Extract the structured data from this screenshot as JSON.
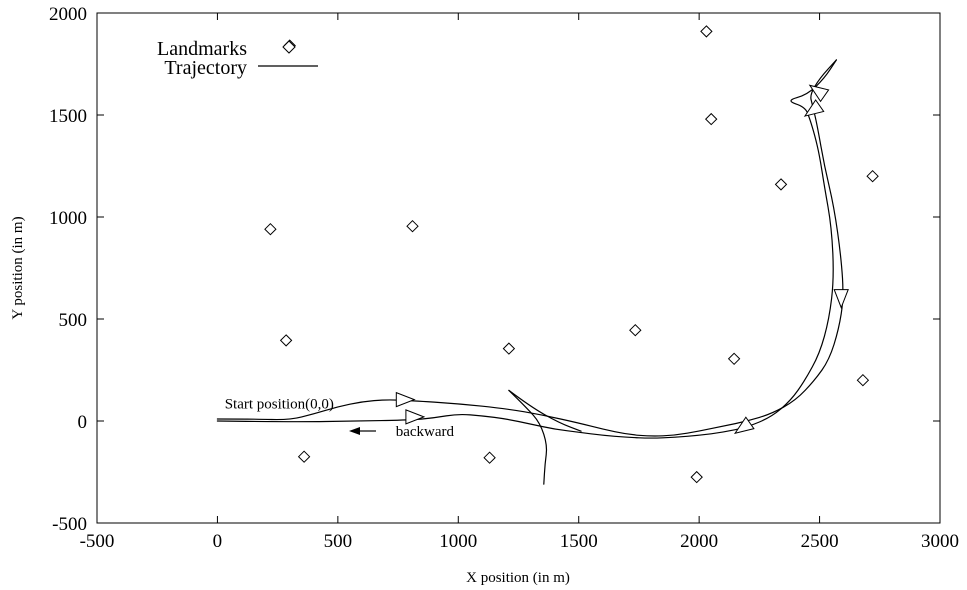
{
  "chart_data": {
    "type": "scatter",
    "title": "",
    "xlabel": "X position (in m)",
    "ylabel": "Y position (in m)",
    "xlim": [
      -500,
      3000
    ],
    "ylim": [
      -500,
      2000
    ],
    "xticks": [
      -500,
      0,
      500,
      1000,
      1500,
      2000,
      2500,
      3000
    ],
    "yticks": [
      -500,
      0,
      500,
      1000,
      1500,
      2000
    ],
    "grid": false,
    "legend": {
      "placement": "top-left",
      "entries": [
        {
          "label": "Landmarks",
          "marker": "diamond"
        },
        {
          "label": "Trajectory",
          "marker": "line"
        }
      ]
    },
    "landmarks": [
      {
        "x": 300,
        "y": 1840
      },
      {
        "x": 220,
        "y": 940
      },
      {
        "x": 810,
        "y": 955
      },
      {
        "x": 285,
        "y": 395
      },
      {
        "x": 360,
        "y": -175
      },
      {
        "x": 1210,
        "y": 355
      },
      {
        "x": 1130,
        "y": -180
      },
      {
        "x": 1735,
        "y": 445
      },
      {
        "x": 1990,
        "y": -275
      },
      {
        "x": 2030,
        "y": 1910
      },
      {
        "x": 2050,
        "y": 1480
      },
      {
        "x": 2145,
        "y": 305
      },
      {
        "x": 2340,
        "y": 1160
      },
      {
        "x": 2720,
        "y": 1200
      },
      {
        "x": 2680,
        "y": 200
      }
    ],
    "trajectories": [
      {
        "points": [
          [
            0,
            10
          ],
          [
            150,
            10
          ],
          [
            300,
            5
          ],
          [
            400,
            35
          ],
          [
            500,
            70
          ],
          [
            600,
            95
          ],
          [
            700,
            105
          ],
          [
            800,
            100
          ],
          [
            1000,
            85
          ],
          [
            1200,
            60
          ],
          [
            1350,
            30
          ],
          [
            1500,
            -10
          ],
          [
            1600,
            -40
          ],
          [
            1700,
            -65
          ],
          [
            1800,
            -75
          ],
          [
            1900,
            -70
          ],
          [
            2000,
            -50
          ],
          [
            2100,
            -25
          ],
          [
            2200,
            0
          ],
          [
            2300,
            35
          ],
          [
            2400,
            100
          ],
          [
            2480,
            200
          ],
          [
            2540,
            300
          ],
          [
            2580,
            450
          ],
          [
            2600,
            600
          ],
          [
            2590,
            800
          ],
          [
            2560,
            1050
          ],
          [
            2520,
            1250
          ],
          [
            2490,
            1450
          ],
          [
            2470,
            1550
          ],
          [
            2460,
            1600
          ],
          [
            2500,
            1680
          ],
          [
            2570,
            1770
          ]
        ]
      },
      {
        "points": [
          [
            0,
            0
          ],
          [
            300,
            -5
          ],
          [
            600,
            0
          ],
          [
            800,
            5
          ],
          [
            900,
            15
          ],
          [
            1000,
            35
          ],
          [
            1100,
            25
          ],
          [
            1200,
            10
          ],
          [
            1300,
            -15
          ],
          [
            1400,
            -40
          ],
          [
            1500,
            -55
          ],
          [
            1600,
            -70
          ],
          [
            1700,
            -80
          ],
          [
            1800,
            -85
          ],
          [
            1900,
            -80
          ],
          [
            2000,
            -70
          ],
          [
            2100,
            -55
          ],
          [
            2200,
            -30
          ],
          [
            2300,
            20
          ],
          [
            2380,
            100
          ],
          [
            2440,
            200
          ],
          [
            2500,
            330
          ],
          [
            2540,
            500
          ],
          [
            2560,
            700
          ],
          [
            2550,
            950
          ],
          [
            2520,
            1150
          ],
          [
            2500,
            1300
          ],
          [
            2480,
            1400
          ],
          [
            2460,
            1480
          ],
          [
            2440,
            1540
          ],
          [
            2360,
            1570
          ],
          [
            2450,
            1600
          ],
          [
            2520,
            1680
          ],
          [
            2570,
            1770
          ]
        ]
      },
      {
        "points": [
          [
            1210,
            150
          ],
          [
            1280,
            70
          ],
          [
            1340,
            -10
          ],
          [
            1370,
            -120
          ],
          [
            1360,
            -210
          ],
          [
            1355,
            -310
          ]
        ]
      },
      {
        "points": [
          [
            1210,
            150
          ],
          [
            1300,
            70
          ],
          [
            1420,
            -10
          ],
          [
            1510,
            -50
          ]
        ]
      }
    ],
    "direction_markers": [
      {
        "x": 780,
        "y": 105,
        "direction": "right"
      },
      {
        "x": 820,
        "y": 20,
        "direction": "right"
      },
      {
        "x": 2180,
        "y": -35,
        "direction": "down-left"
      },
      {
        "x": 2590,
        "y": 600,
        "direction": "down"
      },
      {
        "x": 2490,
        "y": 1620,
        "direction": "up-left"
      },
      {
        "x": 2470,
        "y": 1520,
        "direction": "down-left"
      }
    ],
    "annotations": [
      {
        "text": "Start position(0,0)",
        "x": 30,
        "y": 85
      },
      {
        "text": "backward",
        "x": 740,
        "y": -50
      }
    ]
  }
}
